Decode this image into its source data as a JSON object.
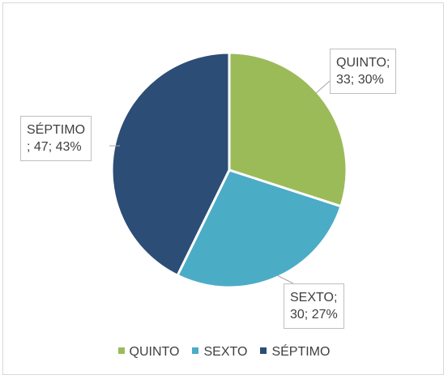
{
  "chart_data": {
    "type": "pie",
    "categories": [
      "QUINTO",
      "SEXTO",
      "SÉPTIMO"
    ],
    "values": [
      33,
      30,
      47
    ],
    "value_labels": [
      "QUINTO;\n33; 30%",
      "SEXTO;\n30; 27%",
      "SÉPTIMO\n; 47; 43%"
    ],
    "colors": [
      "#9bbb59",
      "#4bacc6",
      "#2c4d75"
    ],
    "legend": "bottom"
  }
}
